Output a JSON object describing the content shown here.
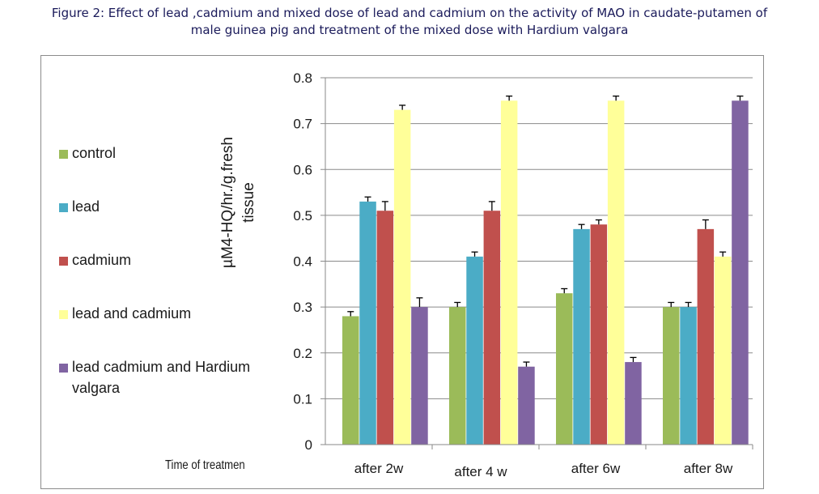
{
  "caption": {
    "line1": "Figure 2: Effect of lead ,cadmium and  mixed dose of lead and cadmium on the activity of MAO in caudate-putamen  of",
    "line2": "male  guinea pig and treatment of the mixed dose with Hardium valgara"
  },
  "chart_data": {
    "type": "bar",
    "title": "Figure 2: Effect of lead ,cadmium and  mixed dose of lead and cadmium on the activity of MAO in caudate-putamen  of male  guinea pig and treatment of the mixed dose with Hardium valgara",
    "xlabel": "Time of treatmen",
    "ylabel": "µM4-HQ/hr./g.fresh tissue",
    "ylabel_lines": [
      "µM4-HQ/hr./g.fresh",
      "tissue"
    ],
    "ylim": [
      0,
      0.8
    ],
    "yticks": [
      0,
      0.1,
      0.2,
      0.3,
      0.4,
      0.5,
      0.6,
      0.7,
      0.8
    ],
    "ytick_labels": [
      "0",
      "0.1",
      "0.2",
      "0.3",
      "0.4",
      "0.5",
      "0.6",
      "0.7",
      "0.8"
    ],
    "grid": true,
    "legend_position": "left",
    "categories": [
      "after 2w",
      "after 4 w",
      "after 6w",
      "after 8w"
    ],
    "series": [
      {
        "name": "control",
        "color": "#9bbb59",
        "values": [
          0.28,
          0.3,
          0.33,
          0.3
        ],
        "errors": [
          0.01,
          0.01,
          0.01,
          0.01
        ]
      },
      {
        "name": "lead",
        "color": "#4bacc6",
        "values": [
          0.53,
          0.41,
          0.47,
          0.3
        ],
        "errors": [
          0.01,
          0.01,
          0.01,
          0.01
        ]
      },
      {
        "name": "cadmium",
        "color": "#c0504d",
        "values": [
          0.51,
          0.51,
          0.48,
          0.47
        ],
        "errors": [
          0.02,
          0.02,
          0.01,
          0.02
        ]
      },
      {
        "name": "lead and cadmium",
        "color": "#ffff99",
        "values": [
          0.73,
          0.75,
          0.75,
          0.41
        ],
        "errors": [
          0.01,
          0.01,
          0.01,
          0.01
        ]
      },
      {
        "name": "lead cadmium and Hardium valgara",
        "color": "#8064a2",
        "values": [
          0.3,
          0.17,
          0.18,
          0.75
        ],
        "errors": [
          0.02,
          0.01,
          0.01,
          0.01
        ]
      }
    ]
  }
}
